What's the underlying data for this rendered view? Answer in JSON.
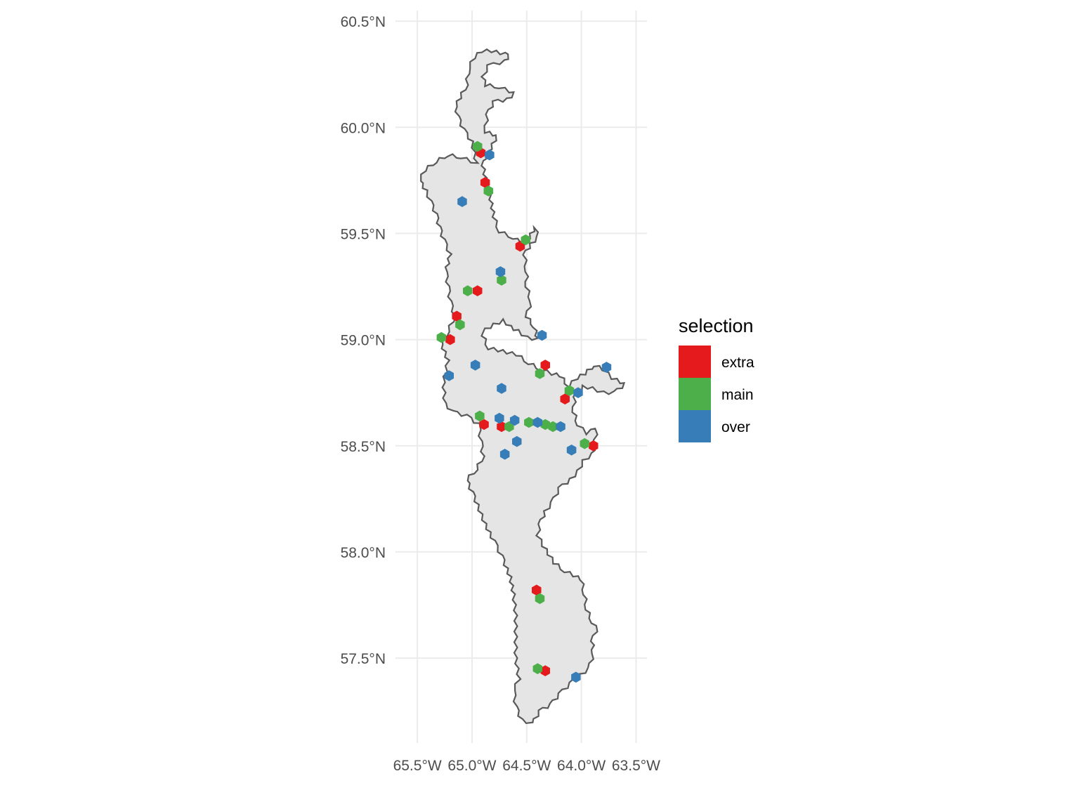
{
  "chart_data": {
    "type": "scatter",
    "xlim": [
      -65.7,
      -63.4
    ],
    "ylim": [
      57.1,
      60.55
    ],
    "grid": true,
    "legend_position": "right",
    "x_ticks": [
      {
        "value": -65.5,
        "label": "65.5°W"
      },
      {
        "value": -65.0,
        "label": "65.0°W"
      },
      {
        "value": -64.5,
        "label": "64.5°W"
      },
      {
        "value": -64.0,
        "label": "64.0°W"
      },
      {
        "value": -63.5,
        "label": "63.5°W"
      }
    ],
    "y_ticks": [
      {
        "value": 57.5,
        "label": "57.5°N"
      },
      {
        "value": 58.0,
        "label": "58.0°N"
      },
      {
        "value": 58.5,
        "label": "58.5°N"
      },
      {
        "value": 59.0,
        "label": "59.0°N"
      },
      {
        "value": 59.5,
        "label": "59.5°N"
      },
      {
        "value": 60.0,
        "label": "60.0°N"
      },
      {
        "value": 60.5,
        "label": "60.5°N"
      }
    ],
    "legend": {
      "title": "selection",
      "entries": [
        {
          "label": "extra",
          "color": "#E41A1C"
        },
        {
          "label": "main",
          "color": "#4DAF4A"
        },
        {
          "label": "over",
          "color": "#377EB8"
        }
      ]
    },
    "region": {
      "fill": "#e5e5e5",
      "stroke": "#595959",
      "outline": [
        [
          -64.96,
          59.83
        ],
        [
          -65.0,
          59.93
        ],
        [
          -65.08,
          59.99
        ],
        [
          -65.13,
          60.05
        ],
        [
          -65.15,
          60.1
        ],
        [
          -65.05,
          60.2
        ],
        [
          -65.03,
          60.28
        ],
        [
          -64.98,
          60.33
        ],
        [
          -64.91,
          60.36
        ],
        [
          -64.82,
          60.36
        ],
        [
          -64.66,
          60.34
        ],
        [
          -64.7,
          60.31
        ],
        [
          -64.85,
          60.29
        ],
        [
          -64.9,
          60.24
        ],
        [
          -64.88,
          60.2
        ],
        [
          -64.75,
          60.19
        ],
        [
          -64.61,
          60.16
        ],
        [
          -64.68,
          60.13
        ],
        [
          -64.8,
          60.12
        ],
        [
          -64.86,
          60.06
        ],
        [
          -64.88,
          59.98
        ],
        [
          -64.77,
          59.96
        ],
        [
          -64.85,
          59.88
        ],
        [
          -64.9,
          59.82
        ],
        [
          -64.87,
          59.74
        ],
        [
          -64.83,
          59.66
        ],
        [
          -64.8,
          59.58
        ],
        [
          -64.75,
          59.51
        ],
        [
          -64.62,
          59.48
        ],
        [
          -64.56,
          59.46
        ],
        [
          -64.48,
          59.48
        ],
        [
          -64.42,
          59.53
        ],
        [
          -64.4,
          59.48
        ],
        [
          -64.46,
          59.45
        ],
        [
          -64.52,
          59.4
        ],
        [
          -64.5,
          59.32
        ],
        [
          -64.5,
          59.25
        ],
        [
          -64.46,
          59.18
        ],
        [
          -64.5,
          59.11
        ],
        [
          -64.43,
          59.06
        ],
        [
          -64.4,
          59.0
        ],
        [
          -64.5,
          59.01
        ],
        [
          -64.58,
          59.04
        ],
        [
          -64.65,
          59.06
        ],
        [
          -64.71,
          59.09
        ],
        [
          -64.8,
          59.07
        ],
        [
          -64.87,
          59.05
        ],
        [
          -64.9,
          59.02
        ],
        [
          -64.85,
          58.96
        ],
        [
          -64.76,
          58.95
        ],
        [
          -64.68,
          58.94
        ],
        [
          -64.59,
          58.93
        ],
        [
          -64.48,
          58.89
        ],
        [
          -64.37,
          58.86
        ],
        [
          -64.27,
          58.84
        ],
        [
          -64.19,
          58.83
        ],
        [
          -64.12,
          58.78
        ],
        [
          -64.04,
          58.82
        ],
        [
          -63.97,
          58.84
        ],
        [
          -63.88,
          58.88
        ],
        [
          -63.8,
          58.86
        ],
        [
          -63.72,
          58.82
        ],
        [
          -63.6,
          58.79
        ],
        [
          -63.7,
          58.75
        ],
        [
          -63.8,
          58.75
        ],
        [
          -63.9,
          58.77
        ],
        [
          -63.98,
          58.78
        ],
        [
          -64.06,
          58.73
        ],
        [
          -64.07,
          58.66
        ],
        [
          -64.03,
          58.6
        ],
        [
          -63.96,
          58.56
        ],
        [
          -63.86,
          58.58
        ],
        [
          -63.88,
          58.5
        ],
        [
          -63.9,
          58.46
        ],
        [
          -63.98,
          58.43
        ],
        [
          -64.03,
          58.38
        ],
        [
          -64.1,
          58.34
        ],
        [
          -64.2,
          58.3
        ],
        [
          -64.27,
          58.23
        ],
        [
          -64.33,
          58.19
        ],
        [
          -64.38,
          58.13
        ],
        [
          -64.4,
          58.08
        ],
        [
          -64.35,
          58.03
        ],
        [
          -64.25,
          57.95
        ],
        [
          -64.15,
          57.91
        ],
        [
          -64.07,
          57.89
        ],
        [
          -64.0,
          57.87
        ],
        [
          -63.97,
          57.8
        ],
        [
          -63.95,
          57.73
        ],
        [
          -63.9,
          57.67
        ],
        [
          -63.85,
          57.65
        ],
        [
          -63.9,
          57.58
        ],
        [
          -63.89,
          57.52
        ],
        [
          -63.93,
          57.45
        ],
        [
          -64.01,
          57.42
        ],
        [
          -64.1,
          57.38
        ],
        [
          -64.2,
          57.33
        ],
        [
          -64.28,
          57.28
        ],
        [
          -64.38,
          57.25
        ],
        [
          -64.45,
          57.19
        ],
        [
          -64.55,
          57.21
        ],
        [
          -64.6,
          57.27
        ],
        [
          -64.62,
          57.35
        ],
        [
          -64.57,
          57.4
        ],
        [
          -64.6,
          57.5
        ],
        [
          -64.6,
          57.6
        ],
        [
          -64.6,
          57.7
        ],
        [
          -64.62,
          57.8
        ],
        [
          -64.65,
          57.88
        ],
        [
          -64.73,
          57.98
        ],
        [
          -64.8,
          58.05
        ],
        [
          -64.88,
          58.13
        ],
        [
          -64.95,
          58.22
        ],
        [
          -65.0,
          58.28
        ],
        [
          -65.05,
          58.34
        ],
        [
          -64.96,
          58.39
        ],
        [
          -64.9,
          58.45
        ],
        [
          -64.92,
          58.52
        ],
        [
          -64.94,
          58.6
        ],
        [
          -65.05,
          58.64
        ],
        [
          -65.18,
          58.66
        ],
        [
          -65.25,
          58.7
        ],
        [
          -65.26,
          58.8
        ],
        [
          -65.22,
          58.9
        ],
        [
          -65.28,
          58.98
        ],
        [
          -65.22,
          59.04
        ],
        [
          -65.16,
          59.11
        ],
        [
          -65.2,
          59.18
        ],
        [
          -65.22,
          59.25
        ],
        [
          -65.24,
          59.32
        ],
        [
          -65.2,
          59.4
        ],
        [
          -65.26,
          59.47
        ],
        [
          -65.3,
          59.53
        ],
        [
          -65.33,
          59.59
        ],
        [
          -65.38,
          59.65
        ],
        [
          -65.42,
          59.7
        ],
        [
          -65.48,
          59.75
        ],
        [
          -65.43,
          59.8
        ],
        [
          -65.33,
          59.84
        ],
        [
          -65.22,
          59.87
        ],
        [
          -65.1,
          59.86
        ]
      ]
    },
    "series": [
      {
        "name": "extra",
        "color": "#E41A1C",
        "points": [
          [
            -64.92,
            59.88
          ],
          [
            -64.88,
            59.74
          ],
          [
            -64.56,
            59.44
          ],
          [
            -64.95,
            59.23
          ],
          [
            -65.14,
            59.11
          ],
          [
            -65.2,
            59.0
          ],
          [
            -64.33,
            58.88
          ],
          [
            -64.15,
            58.72
          ],
          [
            -64.89,
            58.6
          ],
          [
            -64.73,
            58.59
          ],
          [
            -63.89,
            58.5
          ],
          [
            -64.41,
            57.82
          ],
          [
            -64.33,
            57.44
          ]
        ]
      },
      {
        "name": "main",
        "color": "#4DAF4A",
        "points": [
          [
            -64.95,
            59.91
          ],
          [
            -64.85,
            59.7
          ],
          [
            -64.51,
            59.47
          ],
          [
            -64.73,
            59.28
          ],
          [
            -65.04,
            59.23
          ],
          [
            -65.11,
            59.07
          ],
          [
            -65.28,
            59.01
          ],
          [
            -64.38,
            58.84
          ],
          [
            -64.11,
            58.76
          ],
          [
            -64.93,
            58.64
          ],
          [
            -64.66,
            58.59
          ],
          [
            -64.48,
            58.61
          ],
          [
            -64.33,
            58.6
          ],
          [
            -64.26,
            58.59
          ],
          [
            -63.97,
            58.51
          ],
          [
            -64.38,
            57.78
          ],
          [
            -64.4,
            57.45
          ]
        ]
      },
      {
        "name": "over",
        "color": "#377EB8",
        "points": [
          [
            -64.84,
            59.87
          ],
          [
            -65.09,
            59.65
          ],
          [
            -64.74,
            59.32
          ],
          [
            -64.36,
            59.02
          ],
          [
            -64.97,
            58.88
          ],
          [
            -65.21,
            58.83
          ],
          [
            -64.73,
            58.77
          ],
          [
            -63.77,
            58.87
          ],
          [
            -64.03,
            58.75
          ],
          [
            -64.75,
            58.63
          ],
          [
            -64.61,
            58.62
          ],
          [
            -64.4,
            58.61
          ],
          [
            -64.19,
            58.59
          ],
          [
            -64.59,
            58.52
          ],
          [
            -64.7,
            58.46
          ],
          [
            -64.09,
            58.48
          ],
          [
            -64.05,
            57.41
          ]
        ]
      }
    ]
  }
}
